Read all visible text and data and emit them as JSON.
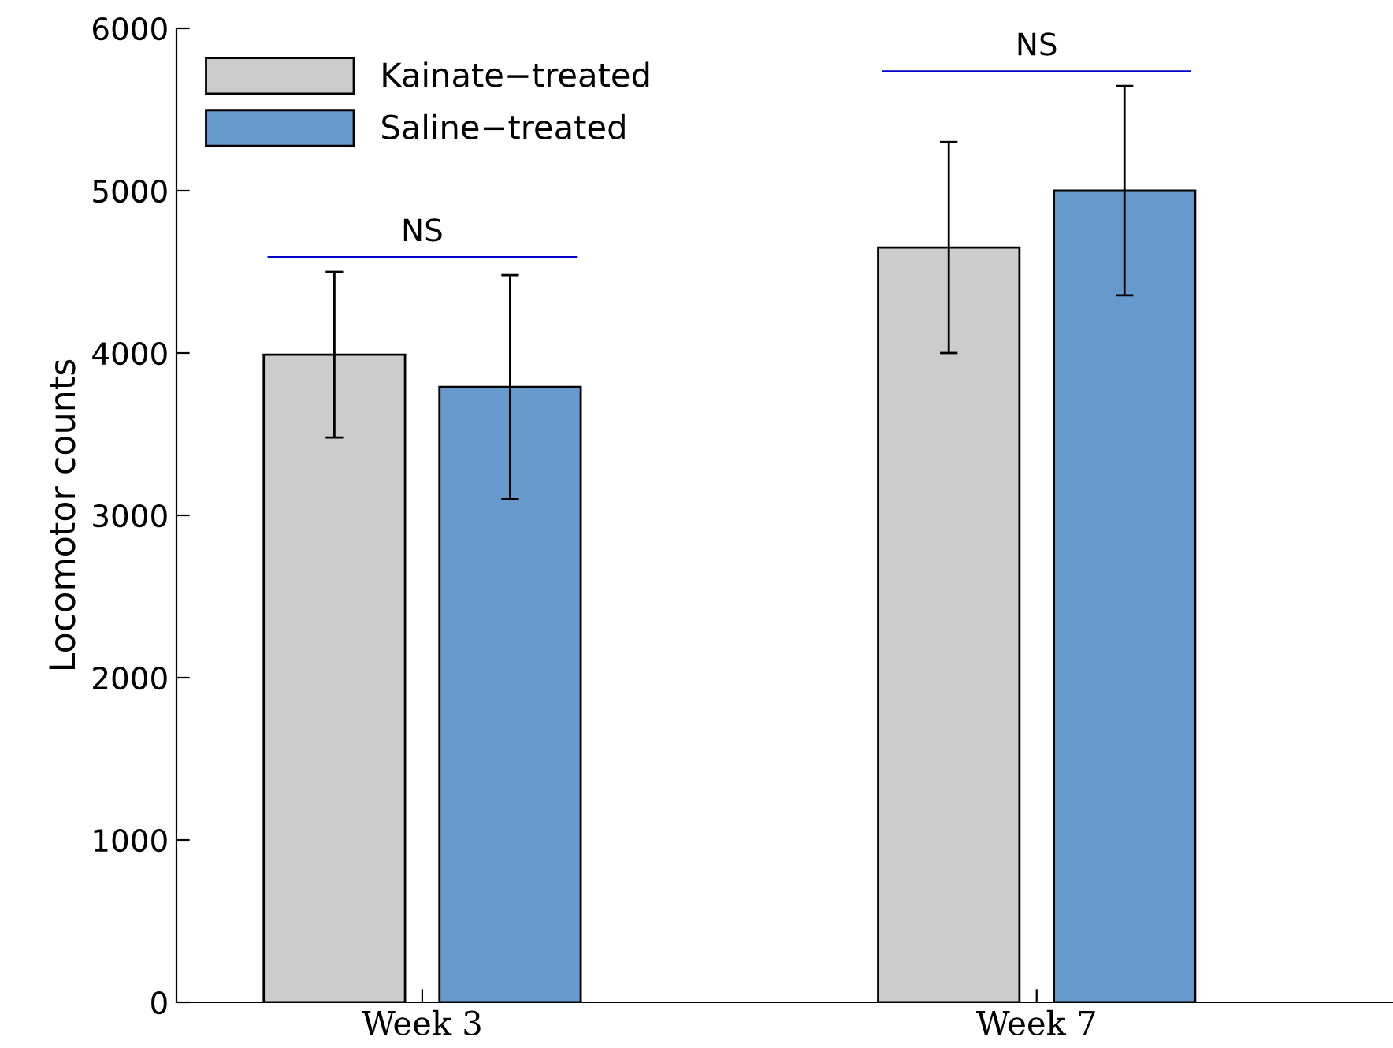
{
  "chart_data": {
    "type": "bar",
    "ylabel": "Locomotor counts",
    "categories": [
      "Week 3",
      "Week 7"
    ],
    "series": [
      {
        "name": "Kainate−treated",
        "color": "#cccccc",
        "values": [
          3990,
          4650
        ],
        "errors": [
          510,
          650
        ]
      },
      {
        "name": "Saline−treated",
        "color": "#6699cc",
        "values": [
          3790,
          5000
        ],
        "errors": [
          690,
          645
        ]
      }
    ],
    "ylim": [
      0,
      6000
    ],
    "yticks": [
      0,
      1000,
      2000,
      3000,
      4000,
      5000,
      6000
    ],
    "annotations": [
      "NS",
      "NS"
    ],
    "grid": false,
    "legend": "top left"
  }
}
